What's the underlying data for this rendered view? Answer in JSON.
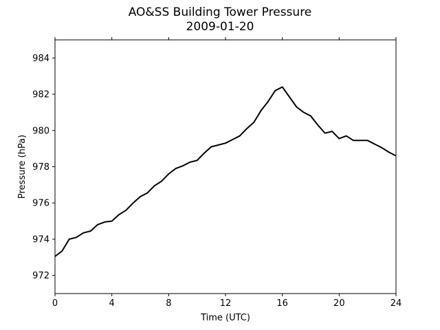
{
  "chart_data": {
    "type": "line",
    "title": "AO&SS Building Tower Pressure",
    "subtitle": "2009-01-20",
    "xlabel": "Time (UTC)",
    "ylabel": "Pressure (hPa)",
    "xlim": [
      0,
      24
    ],
    "ylim": [
      971.0,
      985.0
    ],
    "x_ticks": [
      0,
      4,
      8,
      12,
      16,
      20,
      24
    ],
    "x_tick_labels": [
      "0",
      "4",
      "8",
      "12",
      "16",
      "20",
      "24"
    ],
    "y_ticks": [
      972,
      974,
      976,
      978,
      980,
      982,
      984
    ],
    "y_tick_labels": [
      "972",
      "974",
      "976",
      "978",
      "980",
      "982",
      "984"
    ],
    "grid": false,
    "colors": {
      "line": "#000000",
      "axes": "#000000",
      "background": "#ffffff"
    },
    "series": [
      {
        "x": [
          0,
          0.5,
          1,
          1.5,
          2,
          2.5,
          3,
          3.5,
          4,
          4.5,
          5,
          5.5,
          6,
          6.5,
          7,
          7.5,
          8,
          8.5,
          9,
          9.5,
          10,
          10.5,
          11,
          11.5,
          12,
          12.5,
          13,
          13.5,
          14,
          14.5,
          15,
          15.5,
          16,
          16.5,
          17,
          17.5,
          18,
          18.5,
          19,
          19.5,
          20,
          20.5,
          21,
          21.5,
          22,
          22.5,
          23,
          23.5,
          24
        ],
        "y": [
          973.05,
          973.35,
          974.0,
          974.1,
          974.35,
          974.45,
          974.8,
          974.95,
          975.0,
          975.35,
          975.6,
          976.0,
          976.35,
          976.55,
          976.95,
          977.2,
          977.6,
          977.9,
          978.05,
          978.25,
          978.35,
          978.75,
          979.1,
          979.2,
          979.3,
          979.5,
          979.7,
          980.1,
          980.45,
          981.1,
          981.6,
          982.2,
          982.4,
          981.85,
          981.3,
          981.0,
          980.8,
          980.3,
          979.85,
          979.95,
          979.55,
          979.7,
          979.45,
          979.45,
          979.45,
          979.25,
          979.05,
          978.8,
          978.6
        ]
      }
    ]
  }
}
